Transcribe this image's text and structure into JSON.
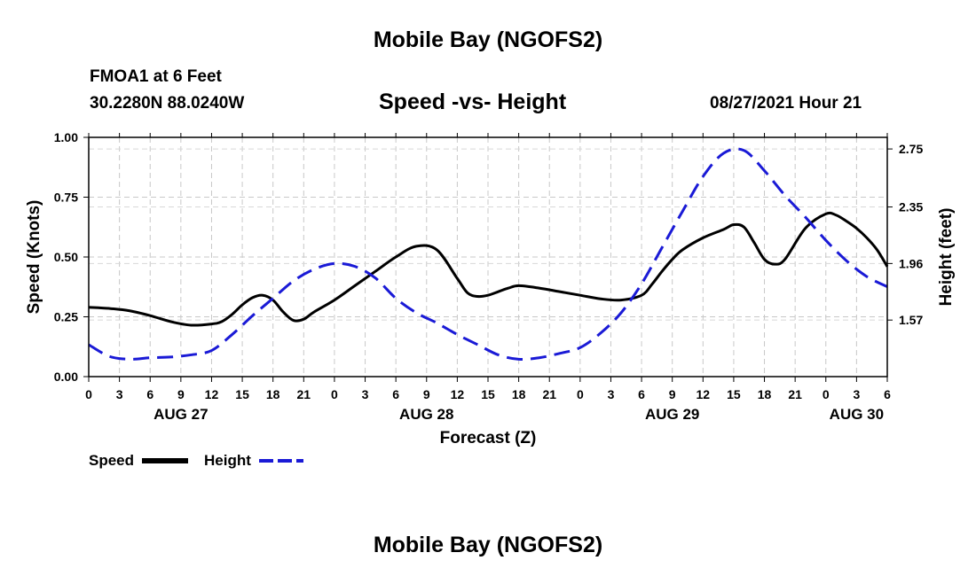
{
  "header": {
    "top_title": "Mobile Bay (NGOFS2)",
    "station": "FMOA1 at 6 Feet",
    "coords": "30.2280N  88.0240W",
    "chart_title": "Speed -vs- Height",
    "datetime": "08/27/2021 Hour 21"
  },
  "footer": {
    "bottom_title": "Mobile Bay (NGOFS2)"
  },
  "chart_data": {
    "type": "line",
    "title": "Speed -vs- Height",
    "xlabel": "Forecast (Z)",
    "ylabel": "Speed (Knots)",
    "y2label": "Height (feet)",
    "x_range_hours": [
      0,
      78
    ],
    "x_tick_hours": [
      0,
      3,
      6,
      9,
      12,
      15,
      18,
      21,
      24,
      27,
      30,
      33,
      36,
      39,
      42,
      45,
      48,
      51,
      54,
      57,
      60,
      63,
      66,
      69,
      72,
      75,
      78
    ],
    "x_tick_labels": [
      "0",
      "3",
      "6",
      "9",
      "12",
      "15",
      "18",
      "21",
      "0",
      "3",
      "6",
      "9",
      "12",
      "15",
      "18",
      "21",
      "0",
      "3",
      "6",
      "9",
      "12",
      "15",
      "18",
      "21",
      "0",
      "3",
      "6"
    ],
    "date_labels": [
      {
        "hour": 9,
        "label": "AUG 27"
      },
      {
        "hour": 33,
        "label": "AUG 28"
      },
      {
        "hour": 57,
        "label": "AUG 29"
      },
      {
        "hour": 75,
        "label": "AUG 30"
      }
    ],
    "ylim": [
      0,
      1
    ],
    "y_ticks": [
      0,
      0.25,
      0.5,
      0.75,
      1
    ],
    "y_tick_labels": [
      "0.00",
      "0.25",
      "0.50",
      "0.75",
      "1.00"
    ],
    "y2lim": [
      1.18,
      2.83
    ],
    "y2_ticks": [
      1.57,
      1.96,
      2.35,
      2.75
    ],
    "y2_tick_labels": [
      "1.57",
      "1.96",
      "2.35",
      "2.75"
    ],
    "grid": true,
    "series": [
      {
        "name": "Speed",
        "axis": "left",
        "color": "#000000",
        "dash": "solid",
        "x": [
          0,
          2,
          4,
          6,
          8,
          10,
          12,
          13,
          14,
          15,
          16,
          17,
          18,
          19,
          20,
          21,
          22,
          24,
          26,
          28,
          30,
          32,
          34,
          36,
          37,
          38,
          39,
          40,
          41,
          42,
          44,
          46,
          48,
          50,
          52,
          54,
          55,
          56,
          57,
          58,
          60,
          62,
          63,
          64,
          65,
          66,
          67,
          68,
          70,
          72,
          73,
          74,
          75,
          76,
          77,
          78
        ],
        "values": [
          0.29,
          0.285,
          0.275,
          0.255,
          0.23,
          0.215,
          0.22,
          0.23,
          0.26,
          0.3,
          0.33,
          0.34,
          0.32,
          0.27,
          0.235,
          0.24,
          0.27,
          0.32,
          0.38,
          0.44,
          0.5,
          0.545,
          0.53,
          0.41,
          0.35,
          0.335,
          0.34,
          0.355,
          0.37,
          0.38,
          0.37,
          0.355,
          0.34,
          0.325,
          0.32,
          0.34,
          0.385,
          0.44,
          0.49,
          0.53,
          0.58,
          0.615,
          0.635,
          0.625,
          0.56,
          0.49,
          0.47,
          0.49,
          0.62,
          0.68,
          0.675,
          0.65,
          0.62,
          0.58,
          0.53,
          0.46
        ]
      },
      {
        "name": "Height",
        "axis": "right",
        "color": "#1a1ad6",
        "dash": "dashed",
        "x": [
          0,
          2,
          4,
          6,
          8,
          10,
          12,
          14,
          16,
          18,
          20,
          22,
          24,
          26,
          28,
          30,
          32,
          34,
          36,
          38,
          40,
          42,
          44,
          46,
          48,
          50,
          52,
          54,
          56,
          58,
          60,
          62,
          64,
          66,
          68,
          70,
          72,
          74,
          76,
          78
        ],
        "values": [
          1.4,
          1.32,
          1.3,
          1.31,
          1.315,
          1.33,
          1.36,
          1.47,
          1.6,
          1.72,
          1.84,
          1.92,
          1.96,
          1.94,
          1.86,
          1.72,
          1.62,
          1.55,
          1.47,
          1.4,
          1.33,
          1.3,
          1.31,
          1.34,
          1.38,
          1.48,
          1.62,
          1.82,
          2.07,
          2.32,
          2.56,
          2.72,
          2.74,
          2.6,
          2.43,
          2.28,
          2.12,
          1.98,
          1.87,
          1.8
        ]
      }
    ],
    "legend": [
      "Speed",
      "Height"
    ],
    "legend_position": "bottom-left"
  }
}
